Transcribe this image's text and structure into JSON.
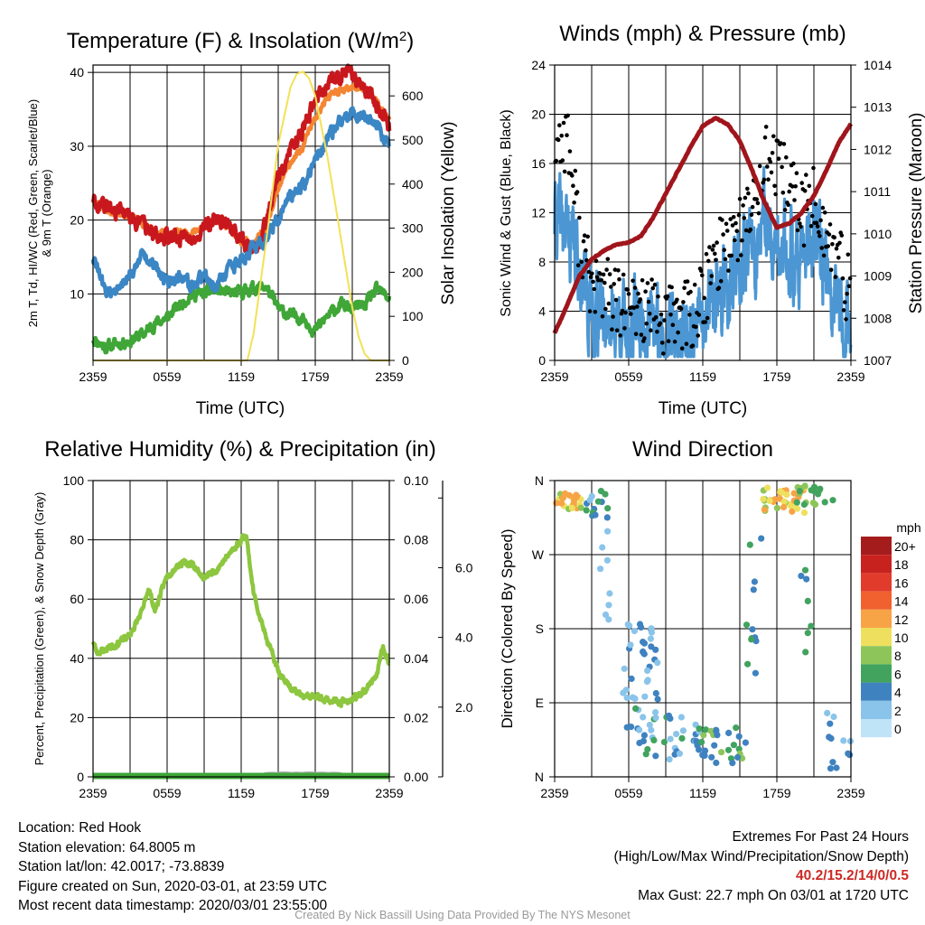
{
  "chart_data": [
    {
      "type": "line",
      "title": "Temperature (F) & Insolation (W/m²)",
      "xlabel": "Time (UTC)",
      "ylabel": "2m T, Td, HI/WC (Red, Green, Scarlet/Blue) & 9m T (Orange)",
      "ylabel_lines": [
        "2m T, Td, HI/WC (Red, Green, Scarlet/Blue)",
        "& 9m T (Orange)"
      ],
      "y2label": "Solar Insolation (Yellow)",
      "x_ticks": [
        "2359",
        "0559",
        "1159",
        "1759",
        "2359"
      ],
      "ylim": [
        1,
        41
      ],
      "y_ticks": [
        10,
        20,
        30,
        40
      ],
      "y2lim": [
        0,
        670
      ],
      "y2_ticks": [
        0,
        100,
        200,
        300,
        400,
        500,
        600
      ],
      "grid": true,
      "series": [
        {
          "name": "2m T",
          "color": "#c8181e",
          "axis": "y",
          "x": [
            0,
            1,
            2,
            3,
            4,
            5,
            6,
            7,
            8,
            9,
            10,
            11,
            12,
            13,
            14,
            15,
            16,
            17,
            18,
            19,
            20,
            21,
            22,
            23,
            24
          ],
          "values": [
            22.8,
            21.8,
            21.2,
            20.5,
            19.2,
            18.0,
            17.6,
            18.0,
            17.6,
            19.0,
            20.0,
            19.6,
            17.2,
            16.0,
            19.5,
            25.5,
            29.5,
            32.0,
            36.5,
            38.0,
            39.6,
            39.6,
            38.0,
            35.5,
            32.5
          ]
        },
        {
          "name": "9m T",
          "color": "#f48532",
          "axis": "y",
          "x": [
            0,
            1,
            2,
            3,
            4,
            5,
            6,
            7,
            8,
            9,
            10,
            11,
            12,
            13,
            14,
            15,
            16,
            17,
            18,
            19,
            20,
            21,
            22,
            23,
            24
          ],
          "values": [
            22.6,
            21.5,
            21.0,
            20.6,
            19.5,
            18.5,
            17.8,
            18.5,
            18.2,
            19.5,
            19.8,
            19.0,
            16.8,
            17.0,
            19.0,
            24.5,
            27.8,
            30.0,
            34.0,
            36.5,
            37.5,
            38.0,
            37.8,
            36.0,
            33.5
          ]
        },
        {
          "name": "HI/WC",
          "color": "#3b86c4",
          "axis": "y",
          "x": [
            0,
            1,
            2,
            3,
            4,
            5,
            6,
            7,
            8,
            9,
            10,
            11,
            12,
            13,
            14,
            15,
            16,
            17,
            18,
            19,
            20,
            21,
            22,
            23,
            24
          ],
          "values": [
            15.0,
            10.3,
            10.5,
            12.5,
            15.5,
            14.0,
            11.5,
            12.5,
            11.0,
            12.5,
            11.0,
            13.5,
            14.5,
            16.0,
            17.5,
            20.0,
            23.5,
            24.5,
            28.0,
            31.0,
            33.5,
            34.5,
            34.0,
            33.0,
            29.5
          ]
        },
        {
          "name": "Td",
          "color": "#3fa637",
          "axis": "y",
          "x": [
            0,
            1,
            2,
            3,
            4,
            5,
            6,
            7,
            8,
            9,
            10,
            11,
            12,
            13,
            14,
            15,
            16,
            17,
            18,
            19,
            20,
            21,
            22,
            23,
            24
          ],
          "values": [
            4.0,
            2.8,
            3.3,
            3.7,
            4.5,
            6.0,
            6.8,
            8.5,
            10.0,
            10.0,
            10.5,
            10.0,
            10.2,
            10.8,
            11.0,
            8.0,
            7.0,
            6.8,
            5.0,
            7.0,
            8.5,
            8.0,
            8.5,
            10.5,
            9.5
          ]
        },
        {
          "name": "Solar Insolation",
          "color": "#f3e157",
          "axis": "y2",
          "x": [
            0,
            12.5,
            13,
            14,
            15,
            16,
            16.5,
            17,
            17.5,
            18,
            19,
            20,
            21,
            21.5,
            22,
            22.5,
            23,
            24
          ],
          "values": [
            0,
            0,
            60,
            265,
            490,
            620,
            650,
            655,
            640,
            600,
            460,
            290,
            120,
            55,
            15,
            0,
            0,
            0
          ]
        }
      ]
    },
    {
      "type": "line",
      "title": "Winds (mph) & Pressure (mb)",
      "xlabel": "Time (UTC)",
      "ylabel": "Sonic Wind & Gust (Blue, Black)",
      "y2label": "Station Pressure (Maroon)",
      "x_ticks": [
        "2359",
        "0559",
        "1159",
        "1759",
        "2359"
      ],
      "ylim": [
        0,
        24
      ],
      "y_ticks": [
        0,
        4,
        8,
        12,
        16,
        20,
        24
      ],
      "y2lim": [
        1007,
        1014
      ],
      "y2_ticks": [
        1007,
        1008,
        1009,
        1010,
        1011,
        1012,
        1013,
        1014
      ],
      "grid": true,
      "series": [
        {
          "name": "Sonic Wind",
          "color": "#4c97d3",
          "axis": "y",
          "x": [
            0,
            1,
            2,
            3,
            4,
            5,
            6,
            7,
            8,
            9,
            10,
            11,
            12,
            13,
            14,
            15,
            16,
            17,
            18,
            19,
            20,
            21,
            22,
            23,
            24
          ],
          "values": [
            11.5,
            10.5,
            8.0,
            3.5,
            4.0,
            3.0,
            2.5,
            3.0,
            2.5,
            1.8,
            2.5,
            2.0,
            3.0,
            5.0,
            6.0,
            7.5,
            8.5,
            11.0,
            7.5,
            9.5,
            8.0,
            10.0,
            7.0,
            5.0,
            3.0
          ]
        },
        {
          "name": "Gust",
          "color": "#000000",
          "axis": "y",
          "x": [
            0,
            1,
            2,
            3,
            4,
            5,
            6,
            7,
            8,
            9,
            10,
            11,
            12,
            13,
            14,
            15,
            16,
            17,
            18,
            19,
            20,
            21,
            22,
            23,
            24
          ],
          "values": [
            17.5,
            18.5,
            10.0,
            6.0,
            6.0,
            4.5,
            4.0,
            4.5,
            3.5,
            3.0,
            4.0,
            3.5,
            5.0,
            8.0,
            10.0,
            11.0,
            12.0,
            17.0,
            15.0,
            14.5,
            12.0,
            13.0,
            10.0,
            8.0,
            5.0
          ]
        },
        {
          "name": "Station Pressure",
          "color": "#a0151c",
          "axis": "y2",
          "x": [
            0,
            1,
            2,
            3,
            4,
            5,
            6,
            7,
            8,
            9,
            10,
            11,
            12,
            13,
            14,
            15,
            16,
            17,
            18,
            19,
            20,
            21,
            22,
            23,
            24
          ],
          "values": [
            1007.65,
            1008.3,
            1009.0,
            1009.4,
            1009.6,
            1009.75,
            1009.8,
            1009.95,
            1010.4,
            1010.95,
            1011.5,
            1012.05,
            1012.55,
            1012.75,
            1012.6,
            1012.2,
            1011.5,
            1010.75,
            1010.15,
            1010.25,
            1010.5,
            1010.9,
            1011.5,
            1012.15,
            1012.6
          ]
        }
      ]
    },
    {
      "type": "line",
      "title": "Relative Humidity (%) & Precipitation (in)",
      "xlabel": "",
      "ylabel": "Percent, Precipitation (Green), & Snow Depth (Gray)",
      "x_ticks": [
        "2359",
        "0559",
        "1159",
        "1759",
        "2359"
      ],
      "ylim": [
        0,
        100
      ],
      "y_ticks": [
        0,
        20,
        40,
        60,
        80,
        100
      ],
      "y2lim": [
        0,
        0.1
      ],
      "y2_ticks": [
        "0.00",
        "0.02",
        "0.04",
        "0.06",
        "0.08",
        "0.10"
      ],
      "y3_ticks": [
        "2.0",
        "4.0",
        "6.0"
      ],
      "grid": true,
      "series": [
        {
          "name": "Relative Humidity",
          "color": "#8dc63f",
          "axis": "y",
          "x": [
            0,
            0.3,
            1,
            2,
            3,
            4,
            4.5,
            5,
            5.5,
            6,
            7,
            8,
            9,
            10,
            11,
            12,
            12.4,
            13,
            14,
            15,
            16,
            17,
            18,
            19,
            20,
            21,
            22,
            23,
            23.5,
            24
          ],
          "values": [
            46,
            42,
            43,
            45,
            48,
            56,
            64,
            56,
            62,
            68,
            72,
            72,
            67,
            70,
            75,
            80,
            82,
            62,
            47,
            36,
            30,
            27,
            27,
            26,
            25,
            26,
            29,
            35,
            44,
            38
          ]
        },
        {
          "name": "Precipitation",
          "color": "#3fa637",
          "axis": "y2",
          "x": [
            0,
            24
          ],
          "values": [
            0,
            0
          ]
        },
        {
          "name": "Snow Depth",
          "color": "#aaaaaa",
          "axis": "y3",
          "x": [
            14.5,
            15.5,
            16.5,
            17.5,
            18.5,
            19.5
          ],
          "values": [
            0.3,
            0.5,
            0.4,
            0.5,
            0.4,
            0.3
          ]
        }
      ]
    },
    {
      "type": "scatter",
      "title": "Wind Direction",
      "ylabel": "Direction (Colored By Speed)",
      "x_ticks": [
        "2359",
        "0559",
        "1159",
        "1759",
        "2359"
      ],
      "y_ticks": [
        "N",
        "E",
        "S",
        "W",
        "N"
      ],
      "ylim": [
        0,
        360
      ],
      "grid": true,
      "legend": {
        "title": "mph",
        "placement": "right",
        "labels": [
          "20+",
          "18",
          "16",
          "14",
          "12",
          "10",
          "8",
          "6",
          "4",
          "2",
          "0"
        ],
        "colors": [
          "#a51c1d",
          "#c8221f",
          "#e13b2c",
          "#f0612f",
          "#f7a447",
          "#eee05e",
          "#8dc55a",
          "#41a35e",
          "#3f82c0",
          "#8ac4ea",
          "#bfe4f8"
        ]
      }
    }
  ],
  "footer_left": {
    "location": "Location: Red Hook",
    "elevation": "Station elevation: 64.8005 m",
    "latlon": "Station lat/lon: 42.0017; -73.8839",
    "created": "Figure created on Sun, 2020-03-01, at 23:59 UTC",
    "recent": "Most recent data timestamp: 2020/03/01 23:55:00"
  },
  "footer_right": {
    "heading": "Extremes For Past 24 Hours",
    "subheading": "(High/Low/Max Wind/Precipitation/Snow Depth)",
    "values": "40.2/15.2/14/0/0.5",
    "gust": "Max Gust: 22.7 mph On 03/01 at 1720 UTC"
  },
  "credit": "Created By Nick Bassill Using Data Provided By The NYS Mesonet"
}
